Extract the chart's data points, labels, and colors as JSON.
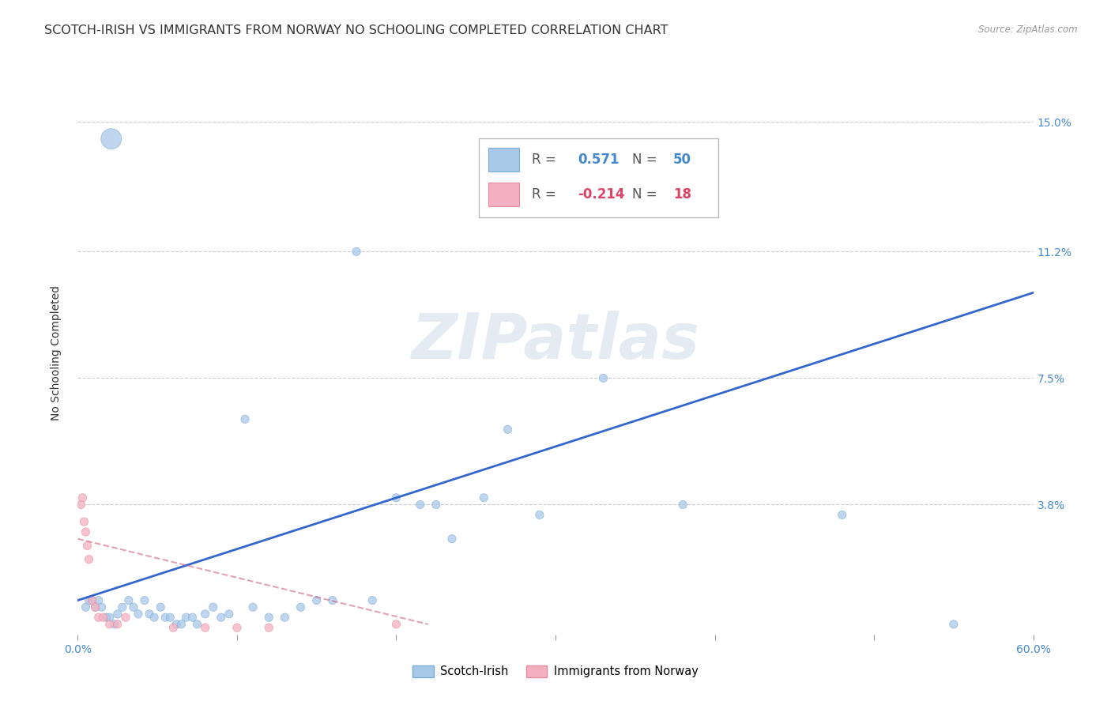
{
  "title": "SCOTCH-IRISH VS IMMIGRANTS FROM NORWAY NO SCHOOLING COMPLETED CORRELATION CHART",
  "source": "Source: ZipAtlas.com",
  "ylabel": "No Schooling Completed",
  "xlim": [
    0.0,
    0.6
  ],
  "ylim": [
    0.0,
    0.165
  ],
  "xtick_pos": [
    0.0,
    0.1,
    0.2,
    0.3,
    0.4,
    0.5,
    0.6
  ],
  "xticklabels": [
    "0.0%",
    "",
    "",
    "",
    "",
    "",
    "60.0%"
  ],
  "ytick_positions": [
    0.0,
    0.038,
    0.075,
    0.112,
    0.15
  ],
  "yticklabels": [
    "",
    "3.8%",
    "7.5%",
    "11.2%",
    "15.0%"
  ],
  "grid_color": "#cccccc",
  "background_color": "#ffffff",
  "scotch_irish_color": "#a8c8e8",
  "scotch_irish_edge_color": "#7aadd4",
  "norway_color": "#f4b0c0",
  "norway_edge_color": "#e888a0",
  "scotch_irish_line_color": "#3366cc",
  "norway_line_color": "#cc6680",
  "legend_R1": "0.571",
  "legend_N1": "50",
  "legend_R2": "-0.214",
  "legend_N2": "18",
  "watermark": "ZIPatlas",
  "title_fontsize": 11.5,
  "axis_label_fontsize": 10,
  "tick_fontsize": 10,
  "legend_fontsize": 12,
  "scotch_irish_x": [
    0.021,
    0.005,
    0.007,
    0.009,
    0.011,
    0.013,
    0.015,
    0.018,
    0.02,
    0.023,
    0.025,
    0.028,
    0.032,
    0.035,
    0.038,
    0.042,
    0.045,
    0.048,
    0.052,
    0.055,
    0.058,
    0.062,
    0.065,
    0.068,
    0.072,
    0.075,
    0.08,
    0.085,
    0.09,
    0.095,
    0.105,
    0.11,
    0.12,
    0.13,
    0.14,
    0.15,
    0.16,
    0.175,
    0.185,
    0.2,
    0.215,
    0.225,
    0.235,
    0.255,
    0.27,
    0.29,
    0.33,
    0.38,
    0.48,
    0.55
  ],
  "scotch_irish_y": [
    0.145,
    0.008,
    0.01,
    0.01,
    0.008,
    0.01,
    0.008,
    0.005,
    0.005,
    0.003,
    0.006,
    0.008,
    0.01,
    0.008,
    0.006,
    0.01,
    0.006,
    0.005,
    0.008,
    0.005,
    0.005,
    0.003,
    0.003,
    0.005,
    0.005,
    0.003,
    0.006,
    0.008,
    0.005,
    0.006,
    0.063,
    0.008,
    0.005,
    0.005,
    0.008,
    0.01,
    0.01,
    0.112,
    0.01,
    0.04,
    0.038,
    0.038,
    0.028,
    0.04,
    0.06,
    0.035,
    0.075,
    0.038,
    0.035,
    0.003
  ],
  "scotch_irish_sizes": [
    350,
    55,
    55,
    55,
    55,
    55,
    55,
    55,
    55,
    55,
    55,
    55,
    55,
    55,
    55,
    55,
    55,
    55,
    55,
    55,
    55,
    55,
    55,
    55,
    55,
    55,
    55,
    55,
    55,
    55,
    55,
    55,
    55,
    55,
    55,
    55,
    55,
    55,
    55,
    55,
    55,
    55,
    55,
    55,
    55,
    55,
    55,
    55,
    55,
    55
  ],
  "norway_x": [
    0.002,
    0.003,
    0.004,
    0.005,
    0.006,
    0.007,
    0.009,
    0.011,
    0.013,
    0.016,
    0.02,
    0.025,
    0.03,
    0.06,
    0.08,
    0.1,
    0.12,
    0.2
  ],
  "norway_y": [
    0.038,
    0.04,
    0.033,
    0.03,
    0.026,
    0.022,
    0.01,
    0.008,
    0.005,
    0.005,
    0.003,
    0.003,
    0.005,
    0.002,
    0.002,
    0.002,
    0.002,
    0.003
  ],
  "norway_sizes": [
    55,
    55,
    55,
    55,
    55,
    55,
    55,
    55,
    55,
    55,
    55,
    55,
    55,
    55,
    55,
    55,
    55,
    55
  ]
}
